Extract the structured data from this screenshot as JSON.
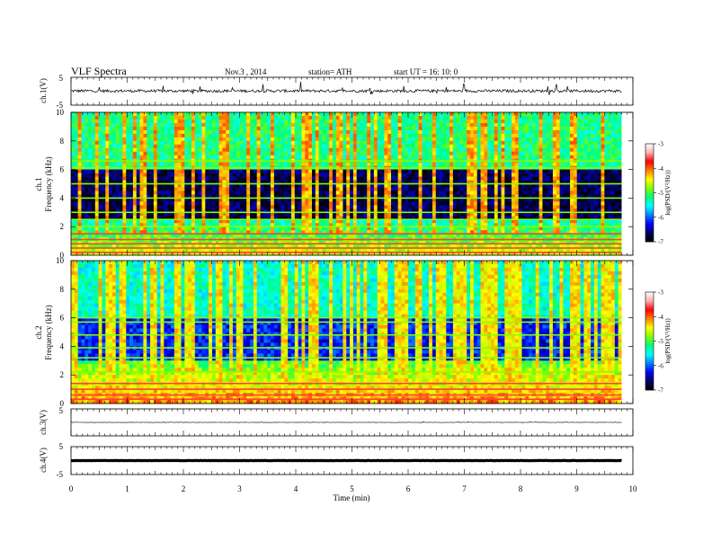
{
  "header": {
    "title": "VLF Spectra",
    "date": "Nov.3 , 2014",
    "station": "station= ATH",
    "start": "start UT = 16: 10: 0"
  },
  "chart_data": [
    {
      "type": "line",
      "name": "ch1-waveform",
      "ylabel": "ch.1(V)",
      "ylim": [
        -5,
        5
      ],
      "yticks": [
        "5",
        "-5"
      ],
      "xlim": [
        0,
        10
      ],
      "data_end_min": 9.8,
      "baseline": 0.1,
      "noise_amplitude": 0.5,
      "spike_amplitude": 2.2
    },
    {
      "type": "heatmap",
      "name": "ch1-spectrogram",
      "ylabel": "ch.1\nFrequency (kHz)",
      "ylabel_lines": [
        "ch.1",
        "Frequency (kHz)"
      ],
      "ylim": [
        0,
        10
      ],
      "yticks": [
        "0",
        "2",
        "4",
        "6",
        "8",
        "10"
      ],
      "xlim": [
        0,
        10
      ],
      "data_end_min": 9.8,
      "colorbar": {
        "label": "log(PSD/(V²/Hz))",
        "ticks": [
          "-3",
          "-4",
          "-5",
          "-6",
          "-7"
        ],
        "range": [
          -7,
          -3
        ]
      },
      "profile": {
        "high_khz": 6.1,
        "low_khz": 2.6,
        "high_level": -5.2,
        "mid_level": -6.7,
        "low_level": -5.4
      },
      "lines_khz": [
        0.2,
        0.5,
        0.8,
        1.1,
        1.5,
        2.0,
        2.5,
        3.0,
        4.0,
        5.0,
        6.1,
        6.6
      ],
      "spike_count": 70,
      "spike_level": -4.2
    },
    {
      "type": "heatmap",
      "name": "ch2-spectrogram",
      "ylabel": "ch.2\nFrequency (kHz)",
      "ylabel_lines": [
        "ch.2",
        "Frequency (kHz)"
      ],
      "ylim": [
        0,
        10
      ],
      "yticks": [
        "0",
        "2",
        "4",
        "6",
        "8",
        "10"
      ],
      "xlim": [
        0,
        10
      ],
      "data_end_min": 9.8,
      "colorbar": {
        "label": "log(PSD/(V²/Hz))",
        "ticks": [
          "-3",
          "-4",
          "-5",
          "-6",
          "-7"
        ],
        "range": [
          -7,
          -3
        ]
      },
      "profile": {
        "high_khz": 6.0,
        "low_khz": 3.0,
        "high_level": -5.4,
        "mid_level": -6.2,
        "low_level": -5.0
      },
      "lines_khz": [
        0.3,
        0.6,
        1.0,
        1.4,
        2.2,
        3.2,
        3.9,
        4.8,
        5.7,
        6.0
      ],
      "spike_count": 95,
      "spike_level": -4.4
    },
    {
      "type": "line",
      "name": "ch3-waveform",
      "ylabel": "ch.3(V)",
      "ylim": [
        -5,
        5
      ],
      "yticks": [
        "5"
      ],
      "xlim": [
        0,
        10
      ],
      "data_end_min": 9.8,
      "baseline": 0.0,
      "noise_amplitude": 0.08,
      "spike_amplitude": 0.2
    },
    {
      "type": "line",
      "name": "ch4-waveform",
      "ylabel": "ch.4(V)",
      "ylim": [
        -5,
        5
      ],
      "yticks": [
        "5",
        "-5"
      ],
      "xlim": [
        0,
        10
      ],
      "data_end_min": 9.8,
      "baseline": 0.0,
      "noise_amplitude": 0.05,
      "spike_amplitude": 0.0
    }
  ],
  "x_axis": {
    "label": "Time (min)",
    "ticks": [
      "0",
      "1",
      "2",
      "3",
      "4",
      "5",
      "6",
      "7",
      "8",
      "9",
      "10"
    ],
    "range": [
      0,
      10
    ]
  },
  "colors": {
    "waveform": "#000000",
    "colormap": [
      "#000000",
      "#000060",
      "#0000ff",
      "#0080ff",
      "#00ffff",
      "#00ff80",
      "#80ff00",
      "#ffff00",
      "#ff8000",
      "#ff0000",
      "#ffb0b0",
      "#ffffff"
    ]
  }
}
